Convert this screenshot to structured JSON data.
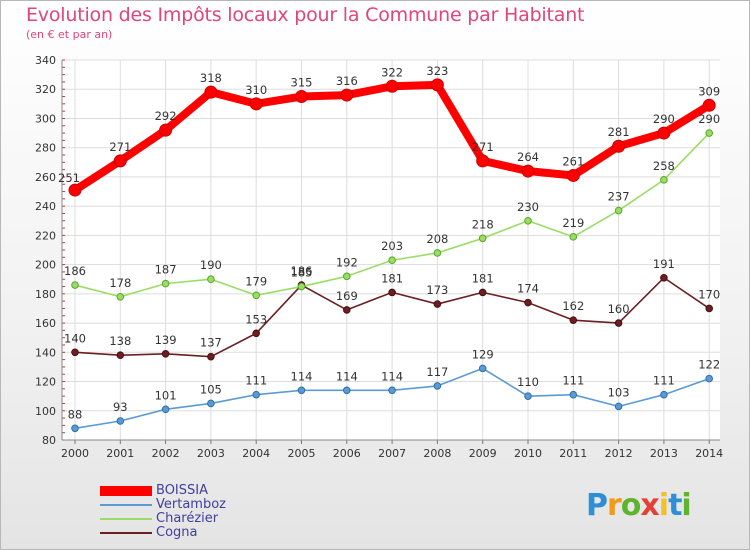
{
  "chart_data": {
    "type": "line",
    "title": "Evolution des Impôts locaux pour la Commune par Habitant",
    "subtitle": "(en € et par an)",
    "xlabel": "",
    "ylabel": "",
    "categories": [
      "2000",
      "2001",
      "2002",
      "2003",
      "2004",
      "2005",
      "2006",
      "2007",
      "2008",
      "2009",
      "2010",
      "2011",
      "2012",
      "2013",
      "2014"
    ],
    "ylim": [
      80,
      340
    ],
    "yticks": [
      80,
      100,
      120,
      140,
      160,
      180,
      200,
      220,
      240,
      260,
      280,
      300,
      320,
      340
    ],
    "grid": true,
    "legend_position": "bottom-left",
    "series": [
      {
        "name": "BOISSIA",
        "color": "#ff0000",
        "values": [
          251,
          271,
          292,
          318,
          310,
          315,
          316,
          322,
          323,
          271,
          264,
          261,
          281,
          290,
          309
        ]
      },
      {
        "name": "Vertamboz",
        "color": "#5b9bd5",
        "values": [
          88,
          93,
          101,
          105,
          111,
          114,
          114,
          114,
          117,
          129,
          110,
          111,
          103,
          111,
          122
        ]
      },
      {
        "name": "Charézier",
        "color": "#99dd66",
        "values": [
          186,
          178,
          187,
          190,
          179,
          185,
          192,
          203,
          208,
          218,
          230,
          219,
          237,
          258,
          290
        ]
      },
      {
        "name": "Cogna",
        "color": "#6b1f22",
        "values": [
          140,
          138,
          139,
          137,
          153,
          186,
          169,
          181,
          173,
          181,
          174,
          162,
          160,
          191,
          170
        ]
      }
    ]
  },
  "logo": {
    "text": "Proxiti",
    "letters": [
      "P",
      "r",
      "o",
      "x",
      "i",
      "t",
      "i"
    ]
  }
}
